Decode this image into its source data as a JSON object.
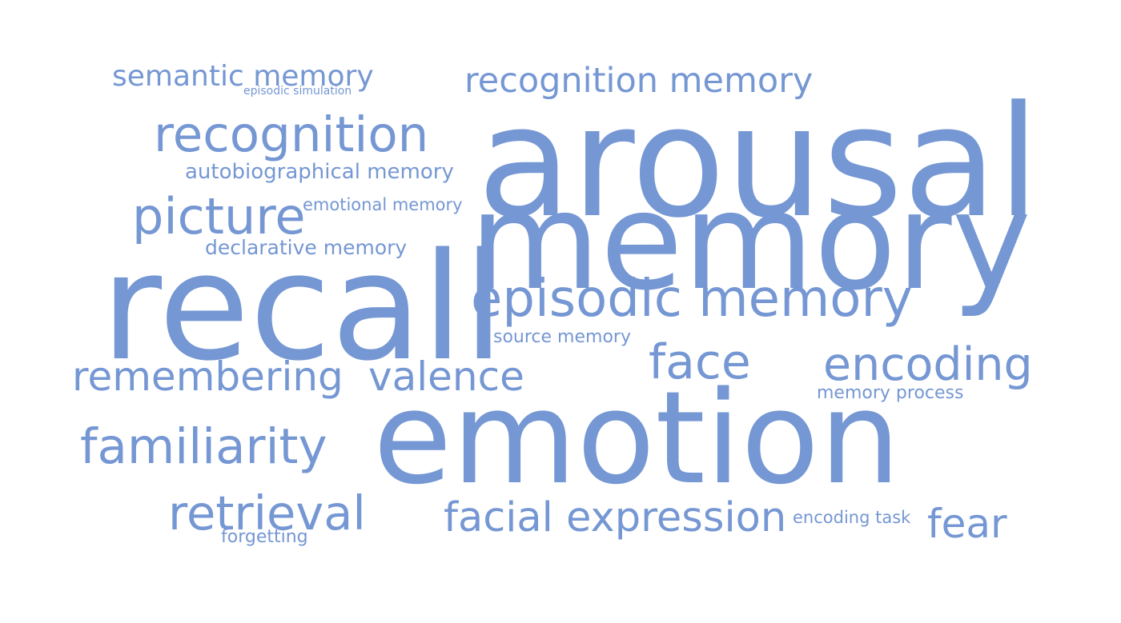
{
  "word_color": "#7597d3",
  "words": [
    {
      "key": "arousal",
      "text": "arousal"
    },
    {
      "key": "memory",
      "text": "memory"
    },
    {
      "key": "recall",
      "text": "recall"
    },
    {
      "key": "emotion",
      "text": "emotion"
    },
    {
      "key": "episodic_memory",
      "text": "episodic memory"
    },
    {
      "key": "recognition",
      "text": "recognition"
    },
    {
      "key": "recognition_memory",
      "text": "recognition memory"
    },
    {
      "key": "semantic_memory",
      "text": "semantic memory"
    },
    {
      "key": "episodic_simulation",
      "text": "episodic simulation"
    },
    {
      "key": "autobiographical_memory",
      "text": "autobiographical memory"
    },
    {
      "key": "picture",
      "text": "picture"
    },
    {
      "key": "emotional_memory",
      "text": "emotional memory"
    },
    {
      "key": "declarative_memory",
      "text": "declarative memory"
    },
    {
      "key": "source_memory",
      "text": "source memory"
    },
    {
      "key": "remembering",
      "text": "remembering"
    },
    {
      "key": "valence",
      "text": "valence"
    },
    {
      "key": "face",
      "text": "face"
    },
    {
      "key": "encoding",
      "text": "encoding"
    },
    {
      "key": "memory_process",
      "text": "memory process"
    },
    {
      "key": "familiarity",
      "text": "familiarity"
    },
    {
      "key": "retrieval",
      "text": "retrieval"
    },
    {
      "key": "forgetting",
      "text": "forgetting"
    },
    {
      "key": "facial_expression",
      "text": "facial expression"
    },
    {
      "key": "encoding_task",
      "text": "encoding task"
    },
    {
      "key": "fear",
      "text": "fear"
    }
  ]
}
